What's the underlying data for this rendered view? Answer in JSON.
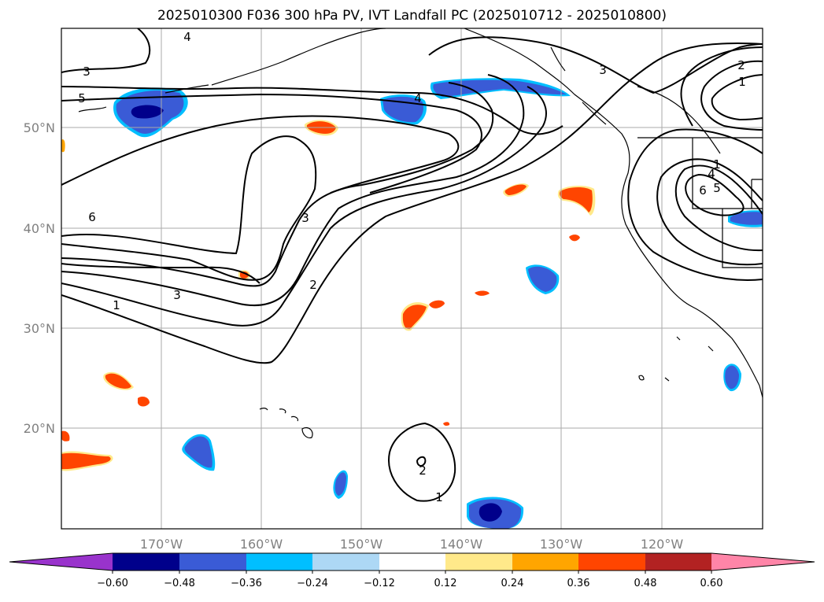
{
  "title": "2025010300 F036 300 hPa PV, IVT Landfall PC (2025010712 - 2025010800)",
  "map": {
    "lon_labels": [
      "170°W",
      "160°W",
      "150°W",
      "140°W",
      "130°W",
      "120°W"
    ],
    "lat_labels": [
      "50°N",
      "40°N",
      "30°N",
      "20°N"
    ],
    "contour_labels": [
      "4",
      "3",
      "5",
      "6",
      "3",
      "1",
      "3",
      "2",
      "4",
      "3",
      "2",
      "1",
      "1",
      "2",
      "6",
      "5",
      "4",
      "1"
    ]
  },
  "colorbar": {
    "ticks": [
      "−0.60",
      "−0.48",
      "−0.36",
      "−0.24",
      "−0.12",
      "0.12",
      "0.24",
      "0.36",
      "0.48",
      "0.60"
    ],
    "colors": [
      "#9933cc",
      "#00008b",
      "#3a5bd6",
      "#00bfff",
      "#add8f5",
      "#ffffff",
      "#ffe98a",
      "#ffa500",
      "#ff4500",
      "#b22222",
      "#ff85a8"
    ]
  }
}
